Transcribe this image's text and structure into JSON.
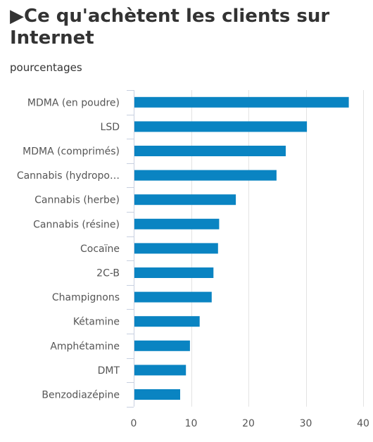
{
  "chart_data": {
    "type": "bar",
    "orientation": "horizontal",
    "title_marker": "▶",
    "title": "Ce qu'achètent les clients sur Internet",
    "subtitle": "pourcentages",
    "xlabel": "",
    "ylabel": "",
    "xlim": [
      0,
      40
    ],
    "ticks": [
      "0",
      "10",
      "20",
      "30",
      "40"
    ],
    "grid": true,
    "legend": "none",
    "bar_color": "#0a84c2",
    "categories": [
      "MDMA (en poudre)",
      "LSD",
      "MDMA (comprimés)",
      "Cannabis (hydropo…",
      "Cannabis (herbe)",
      "Cannabis (résine)",
      "Cocaïne",
      "2C-B",
      "Champignons",
      "Kétamine",
      "Amphétamine",
      "DMT",
      "Benzodiazépine"
    ],
    "values": [
      37.5,
      30.2,
      26.5,
      24.9,
      17.8,
      14.9,
      14.7,
      13.9,
      13.6,
      11.5,
      9.8,
      9.1,
      8.1
    ]
  }
}
